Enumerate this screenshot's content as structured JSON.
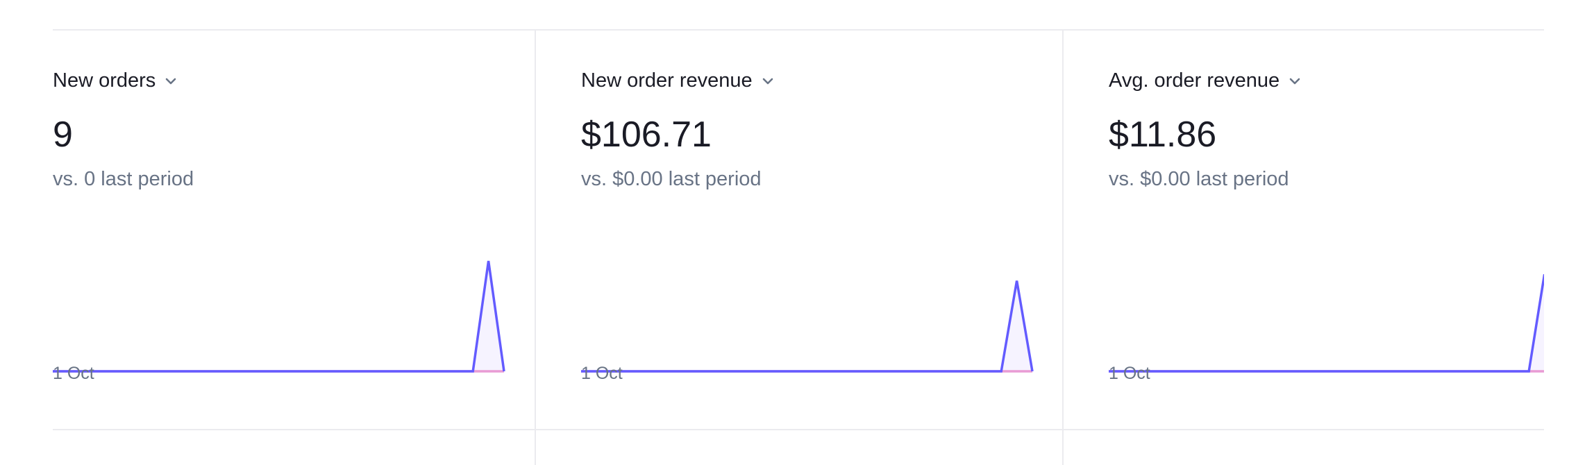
{
  "cards": [
    {
      "title": "New orders",
      "value": "9",
      "compare": "vs. 0 last period",
      "x_start_label": "1 Oct",
      "sparkline": {
        "current": [
          0,
          0,
          0,
          0,
          0,
          0,
          0,
          0,
          0,
          0,
          0,
          0,
          0,
          0,
          0,
          0,
          0,
          0,
          0,
          0,
          0,
          0,
          0,
          0,
          0,
          0,
          0,
          0,
          9,
          0
        ],
        "previous_flat": 0,
        "peak": 9
      }
    },
    {
      "title": "New order revenue",
      "value": "$106.71",
      "compare": "vs. $0.00 last period",
      "x_start_label": "1 Oct",
      "sparkline": {
        "current": [
          0,
          0,
          0,
          0,
          0,
          0,
          0,
          0,
          0,
          0,
          0,
          0,
          0,
          0,
          0,
          0,
          0,
          0,
          0,
          0,
          0,
          0,
          0,
          0,
          0,
          0,
          0,
          0,
          106.71,
          0
        ],
        "previous_flat": 0,
        "peak": 130
      }
    },
    {
      "title": "Avg. order revenue",
      "value": "$11.86",
      "compare": "vs. $0.00 last period",
      "x_start_label": "1 Oct",
      "sparkline": {
        "current": [
          0,
          0,
          0,
          0,
          0,
          0,
          0,
          0,
          0,
          0,
          0,
          0,
          0,
          0,
          0,
          0,
          0,
          0,
          0,
          0,
          0,
          0,
          0,
          0,
          0,
          0,
          0,
          0,
          11.86,
          0
        ],
        "previous_flat": 0,
        "peak": 13.5
      }
    }
  ],
  "colors": {
    "line": "#635bff",
    "fill": "#f6f3ff",
    "baseline_previous": "#e99bd4",
    "title": "#1a1b25",
    "muted": "#687385",
    "divider": "#ebebef"
  },
  "icons": {
    "dropdown": "chevron-down-icon"
  }
}
